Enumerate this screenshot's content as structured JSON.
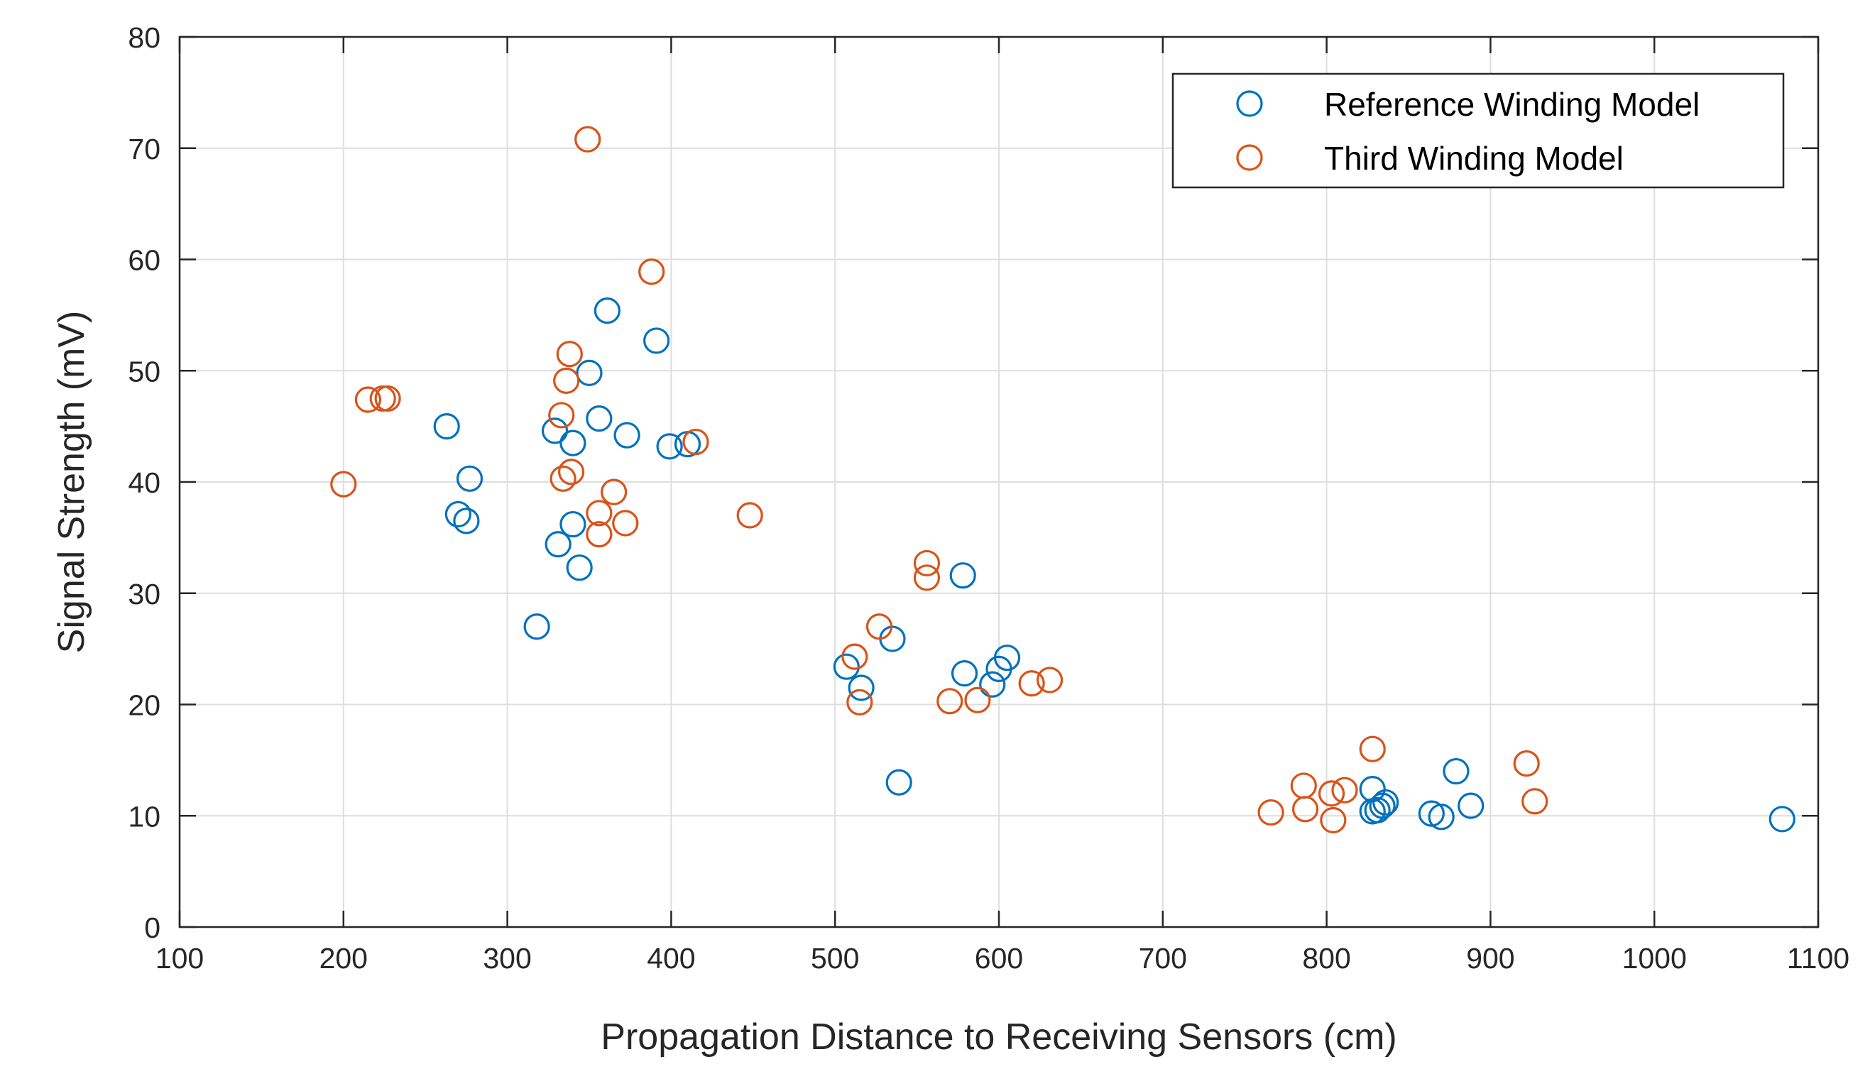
{
  "chart_data": {
    "type": "scatter",
    "title": "",
    "xlabel": "Propagation Distance to Receiving Sensors (cm)",
    "ylabel": "Signal Strength (mV)",
    "xlim": [
      100,
      1100
    ],
    "ylim": [
      0,
      80
    ],
    "xticks": [
      100,
      200,
      300,
      400,
      500,
      600,
      700,
      800,
      900,
      1000,
      1100
    ],
    "yticks": [
      0,
      10,
      20,
      30,
      40,
      50,
      60,
      70,
      80
    ],
    "grid": true,
    "legend_position": "top-right",
    "series": [
      {
        "name": "Reference Winding Model",
        "color": "#0072BD",
        "marker": "open-circle",
        "points": [
          [
            263,
            45.0
          ],
          [
            270,
            37.1
          ],
          [
            275,
            36.5
          ],
          [
            277,
            40.3
          ],
          [
            318,
            27.0
          ],
          [
            329,
            44.6
          ],
          [
            331,
            34.4
          ],
          [
            340,
            43.5
          ],
          [
            340,
            36.2
          ],
          [
            344,
            32.3
          ],
          [
            350,
            49.8
          ],
          [
            356,
            45.7
          ],
          [
            361,
            55.4
          ],
          [
            373,
            44.2
          ],
          [
            391,
            52.7
          ],
          [
            399,
            43.2
          ],
          [
            410,
            43.4
          ],
          [
            507,
            23.4
          ],
          [
            516,
            21.5
          ],
          [
            535,
            25.9
          ],
          [
            539,
            13.0
          ],
          [
            578,
            31.6
          ],
          [
            579,
            22.8
          ],
          [
            596,
            21.8
          ],
          [
            600,
            23.2
          ],
          [
            605,
            24.2
          ],
          [
            828,
            12.4
          ],
          [
            828,
            10.4
          ],
          [
            831,
            10.5
          ],
          [
            834,
            10.9
          ],
          [
            836,
            11.2
          ],
          [
            864,
            10.2
          ],
          [
            870,
            9.9
          ],
          [
            879,
            14.0
          ],
          [
            888,
            10.9
          ],
          [
            1078,
            9.7
          ]
        ]
      },
      {
        "name": "Third Winding Model",
        "color": "#D95319",
        "marker": "open-circle",
        "points": [
          [
            200,
            39.8
          ],
          [
            215,
            47.4
          ],
          [
            224,
            47.5
          ],
          [
            227,
            47.5
          ],
          [
            333,
            46.0
          ],
          [
            334,
            40.3
          ],
          [
            336,
            49.1
          ],
          [
            338,
            51.5
          ],
          [
            339,
            40.9
          ],
          [
            349,
            70.8
          ],
          [
            356,
            35.3
          ],
          [
            356,
            37.2
          ],
          [
            365,
            39.1
          ],
          [
            372,
            36.3
          ],
          [
            388,
            58.9
          ],
          [
            415,
            43.6
          ],
          [
            448,
            37.0
          ],
          [
            512,
            24.3
          ],
          [
            515,
            20.2
          ],
          [
            527,
            27.0
          ],
          [
            556,
            32.7
          ],
          [
            556,
            31.4
          ],
          [
            570,
            20.3
          ],
          [
            587,
            20.4
          ],
          [
            620,
            21.9
          ],
          [
            631,
            22.2
          ],
          [
            766,
            10.3
          ],
          [
            786,
            12.7
          ],
          [
            787,
            10.6
          ],
          [
            803,
            12.0
          ],
          [
            804,
            9.6
          ],
          [
            811,
            12.3
          ],
          [
            828,
            16.0
          ],
          [
            922,
            14.7
          ],
          [
            927,
            11.3
          ]
        ]
      }
    ]
  }
}
